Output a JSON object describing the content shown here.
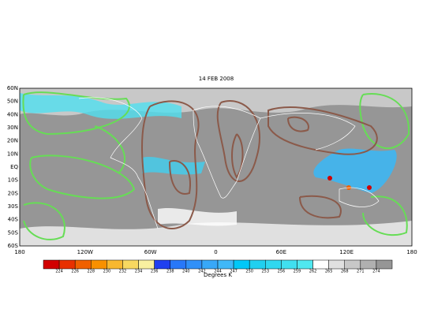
{
  "title": "14 FEB 2008",
  "lat_labels": [
    "60N",
    "50N",
    "40N",
    "30N",
    "20N",
    "10N",
    "EQ",
    "10S",
    "20S",
    "30S",
    "40S",
    "50S",
    "60S"
  ],
  "lon_labels": [
    "180",
    "120W",
    "60W",
    "0",
    "60E",
    "120E",
    "180"
  ],
  "colorbar": {
    "labels": [
      "224",
      "226",
      "228",
      "230",
      "232",
      "234",
      "236",
      "238",
      "240",
      "242",
      "244",
      "247",
      "250",
      "253",
      "256",
      "259",
      "262",
      "265",
      "268",
      "271",
      "274"
    ],
    "colors": [
      "#d20000",
      "#e83000",
      "#f06000",
      "#f89000",
      "#f8b830",
      "#f8d860",
      "#f8f0a0",
      "#2040f0",
      "#2878f8",
      "#3090f8",
      "#38a8f8",
      "#40b8f8",
      "#00c8f8",
      "#20d0f0",
      "#30d8f0",
      "#40e0f0",
      "#50e8f0",
      "#ffffff",
      "#e0e0e0",
      "#c8c8c8",
      "#b0b0b0",
      "#969696"
    ],
    "unit": "Degrees K"
  }
}
